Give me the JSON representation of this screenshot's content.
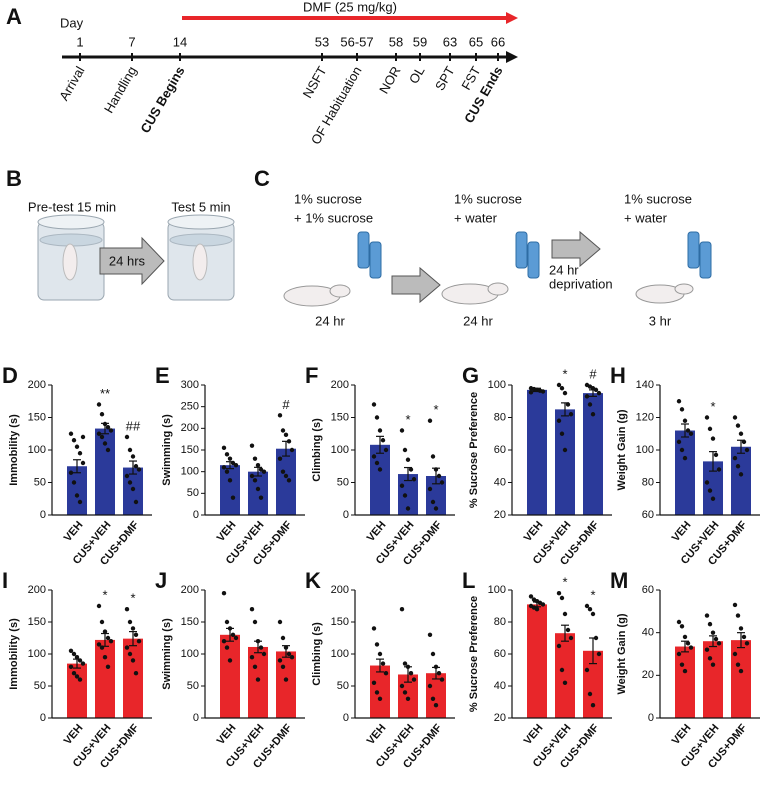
{
  "timeline": {
    "label": "A",
    "day_label": "Day",
    "treatment": "DMF (25 mg/kg)",
    "events": [
      {
        "day": "1",
        "name": "Arrival",
        "emphasis": false
      },
      {
        "day": "7",
        "name": "Handling",
        "emphasis": false
      },
      {
        "day": "14",
        "name": "CUS Begins",
        "emphasis": true
      },
      {
        "day": "53",
        "name": "NSFT",
        "emphasis": false
      },
      {
        "day": "56-57",
        "name": "OF Habituation",
        "emphasis": false
      },
      {
        "day": "58",
        "name": "NOR",
        "emphasis": false
      },
      {
        "day": "59",
        "name": "OL",
        "emphasis": false
      },
      {
        "day": "63",
        "name": "SPT",
        "emphasis": false
      },
      {
        "day": "65",
        "name": "FST",
        "emphasis": false
      },
      {
        "day": "66",
        "name": "CUS Ends",
        "emphasis": true
      }
    ]
  },
  "panel_b": {
    "label": "B",
    "pretest": "Pre-test 15 min",
    "test": "Test 5 min",
    "interval": "24 hrs"
  },
  "panel_c": {
    "label": "C",
    "stages": [
      {
        "lines": [
          "1% sucrose",
          "+ 1% sucrose"
        ],
        "duration": "24 hr"
      },
      {
        "lines": [
          "1% sucrose",
          "+ water"
        ],
        "duration": "24 hr"
      },
      {
        "lines": [
          "1% sucrose",
          "+ water"
        ],
        "duration": "3 hr"
      }
    ],
    "deprivation": [
      "24 hr",
      "deprivation"
    ]
  },
  "chart_data": [
    {
      "type": "bar",
      "label": "D",
      "ylabel": "Immobility (s)",
      "color": "#2b3a9a",
      "categories": [
        "VEH",
        "CUS+VEH",
        "CUS+DMF"
      ],
      "values": [
        75,
        133,
        73
      ],
      "errors": [
        10,
        8,
        10
      ],
      "points": [
        [
          125,
          115,
          105,
          95,
          80,
          65,
          50,
          30,
          20,
          120
        ],
        [
          170,
          155,
          140,
          135,
          130,
          125,
          120,
          110,
          100
        ],
        [
          120,
          100,
          90,
          75,
          70,
          60,
          50,
          40,
          20
        ]
      ],
      "annotations": [
        {
          "category": "CUS+VEH",
          "text": "**"
        },
        {
          "category": "CUS+DMF",
          "text": "##"
        }
      ],
      "ylim": [
        0,
        200
      ],
      "yticks": [
        0,
        50,
        100,
        150,
        200
      ]
    },
    {
      "type": "bar",
      "label": "E",
      "ylabel": "Swimming (s)",
      "color": "#2b3a9a",
      "categories": [
        "VEH",
        "CUS+VEH",
        "CUS+DMF"
      ],
      "values": [
        115,
        100,
        153
      ],
      "errors": [
        8,
        10,
        17
      ],
      "points": [
        [
          155,
          140,
          130,
          120,
          115,
          110,
          100,
          80,
          40
        ],
        [
          160,
          130,
          115,
          105,
          100,
          90,
          80,
          60,
          40
        ],
        [
          230,
          195,
          185,
          170,
          150,
          130,
          100,
          90,
          80
        ]
      ],
      "annotations": [
        {
          "category": "CUS+DMF",
          "text": "#"
        }
      ],
      "ylim": [
        0,
        300
      ],
      "yticks": [
        0,
        50,
        100,
        150,
        200,
        250,
        300
      ]
    },
    {
      "type": "bar",
      "label": "F",
      "ylabel": "Climbing (s)",
      "color": "#2b3a9a",
      "categories": [
        "VEH",
        "CUS+VEH",
        "CUS+DMF"
      ],
      "values": [
        108,
        63,
        60
      ],
      "errors": [
        13,
        10,
        12
      ],
      "points": [
        [
          170,
          150,
          130,
          115,
          100,
          90,
          80,
          70
        ],
        [
          130,
          100,
          85,
          70,
          55,
          45,
          30,
          10
        ],
        [
          145,
          90,
          70,
          60,
          50,
          40,
          20,
          10
        ]
      ],
      "annotations": [
        {
          "category": "CUS+VEH",
          "text": "*"
        },
        {
          "category": "CUS+DMF",
          "text": "*"
        }
      ],
      "ylim": [
        0,
        200
      ],
      "yticks": [
        0,
        50,
        100,
        150,
        200
      ]
    },
    {
      "type": "bar",
      "label": "G",
      "ylabel": "% Sucrose Preference",
      "color": "#2b3a9a",
      "categories": [
        "VEH",
        "CUS+VEH",
        "CUS+DMF"
      ],
      "values": [
        97,
        85,
        95
      ],
      "errors": [
        1,
        4,
        2
      ],
      "points": [
        [
          98,
          97.5,
          97,
          96.5,
          96,
          95.5
        ],
        [
          100,
          98,
          95,
          88,
          82,
          78,
          70,
          60
        ],
        [
          100,
          99,
          98,
          97,
          95,
          93,
          88,
          82
        ]
      ],
      "annotations": [
        {
          "category": "CUS+VEH",
          "text": "*"
        },
        {
          "category": "CUS+DMF",
          "text": "#"
        }
      ],
      "ylim": [
        20,
        100
      ],
      "yticks": [
        20,
        40,
        60,
        80,
        100
      ]
    },
    {
      "type": "bar",
      "label": "H",
      "ylabel": "Weight Gain (g)",
      "color": "#2b3a9a",
      "categories": [
        "VEH",
        "CUS+VEH",
        "CUS+DMF"
      ],
      "values": [
        112,
        93,
        102
      ],
      "errors": [
        4,
        6,
        4
      ],
      "points": [
        [
          130,
          125,
          118,
          112,
          110,
          105,
          100,
          95
        ],
        [
          120,
          113,
          107,
          97,
          88,
          80,
          75,
          70
        ],
        [
          120,
          115,
          110,
          105,
          100,
          95,
          90,
          85
        ]
      ],
      "annotations": [
        {
          "category": "CUS+VEH",
          "text": "*"
        }
      ],
      "ylim": [
        60,
        140
      ],
      "yticks": [
        60,
        80,
        100,
        120,
        140
      ]
    },
    {
      "type": "bar",
      "label": "I",
      "ylabel": "Immobility (s)",
      "color": "#e8262a",
      "categories": [
        "VEH",
        "CUS+VEH",
        "CUS+DMF"
      ],
      "values": [
        85,
        122,
        124
      ],
      "errors": [
        7,
        10,
        11
      ],
      "points": [
        [
          105,
          100,
          95,
          90,
          85,
          80,
          70,
          65,
          60
        ],
        [
          175,
          150,
          135,
          125,
          120,
          115,
          110,
          95,
          80
        ],
        [
          170,
          150,
          140,
          130,
          120,
          110,
          100,
          90,
          70
        ]
      ],
      "annotations": [
        {
          "category": "CUS+VEH",
          "text": "*"
        },
        {
          "category": "CUS+DMF",
          "text": "*"
        }
      ],
      "ylim": [
        0,
        200
      ],
      "yticks": [
        0,
        50,
        100,
        150,
        200
      ]
    },
    {
      "type": "bar",
      "label": "J",
      "ylabel": "Swimming (s)",
      "color": "#e8262a",
      "categories": [
        "VEH",
        "CUS+VEH",
        "CUS+DMF"
      ],
      "values": [
        130,
        111,
        104
      ],
      "errors": [
        10,
        9,
        9
      ],
      "points": [
        [
          195,
          150,
          140,
          130,
          125,
          120,
          110,
          90
        ],
        [
          170,
          150,
          120,
          110,
          100,
          95,
          80,
          60
        ],
        [
          150,
          125,
          110,
          100,
          95,
          90,
          80,
          60
        ]
      ],
      "annotations": [],
      "ylim": [
        0,
        200
      ],
      "yticks": [
        0,
        50,
        100,
        150,
        200
      ]
    },
    {
      "type": "bar",
      "label": "K",
      "ylabel": "Climbing (s)",
      "color": "#e8262a",
      "categories": [
        "VEH",
        "CUS+VEH",
        "CUS+DMF"
      ],
      "values": [
        82,
        68,
        70
      ],
      "errors": [
        10,
        12,
        9
      ],
      "points": [
        [
          140,
          115,
          100,
          85,
          70,
          55,
          40,
          30
        ],
        [
          170,
          85,
          80,
          70,
          60,
          50,
          40,
          30
        ],
        [
          130,
          100,
          80,
          70,
          60,
          50,
          30,
          20
        ]
      ],
      "annotations": [],
      "ylim": [
        0,
        200
      ],
      "yticks": [
        0,
        50,
        100,
        150,
        200
      ]
    },
    {
      "type": "bar",
      "label": "L",
      "ylabel": "% Sucrose Preference",
      "color": "#e8262a",
      "categories": [
        "VEH",
        "CUS+VEH",
        "CUS+DMF"
      ],
      "values": [
        91,
        73,
        62
      ],
      "errors": [
        1.5,
        5,
        8
      ],
      "points": [
        [
          96,
          94,
          93,
          92,
          91,
          90,
          89,
          88
        ],
        [
          98,
          95,
          85,
          75,
          70,
          65,
          50,
          42
        ],
        [
          90,
          88,
          85,
          70,
          60,
          50,
          35,
          28
        ]
      ],
      "annotations": [
        {
          "category": "CUS+VEH",
          "text": "*"
        },
        {
          "category": "CUS+DMF",
          "text": "*"
        }
      ],
      "ylim": [
        20,
        100
      ],
      "yticks": [
        20,
        40,
        60,
        80,
        100
      ]
    },
    {
      "type": "bar",
      "label": "M",
      "ylabel": "Weight Gain (g)",
      "color": "#e8262a",
      "categories": [
        "VEH",
        "CUS+VEH",
        "CUS+DMF"
      ],
      "values": [
        33.5,
        36,
        36.5
      ],
      "errors": [
        2.5,
        2.5,
        3.5
      ],
      "points": [
        [
          45,
          43,
          38,
          35,
          33,
          30,
          25,
          22
        ],
        [
          48,
          44,
          40,
          37,
          35,
          32,
          28,
          25
        ],
        [
          53,
          48,
          42,
          38,
          35,
          30,
          25,
          22
        ]
      ],
      "annotations": [],
      "ylim": [
        0,
        60
      ],
      "yticks": [
        0,
        20,
        40,
        60
      ]
    }
  ]
}
